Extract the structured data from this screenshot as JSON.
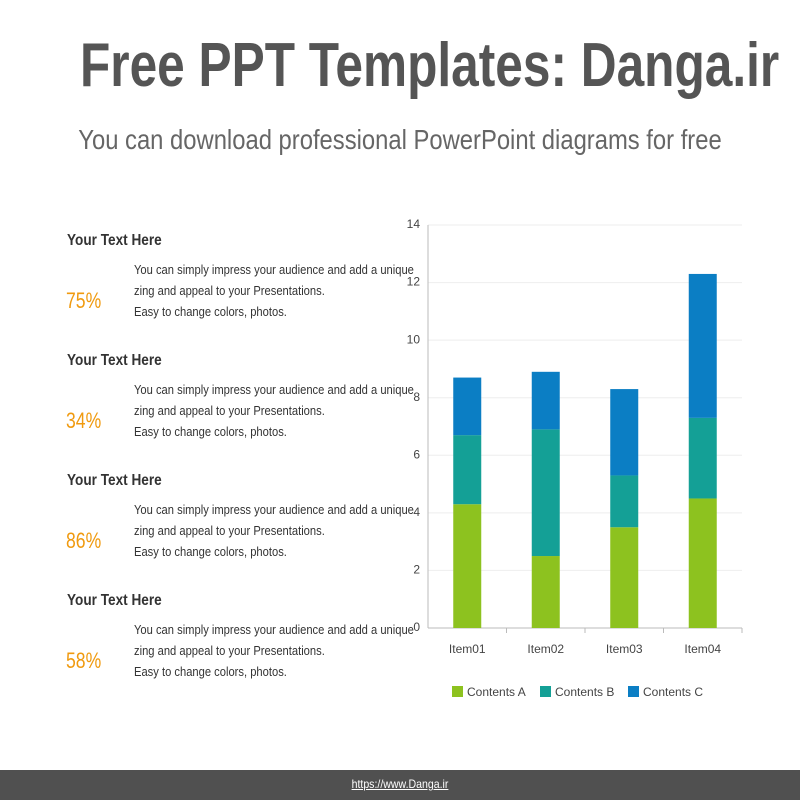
{
  "header": {
    "title": "Free PPT Templates: Danga.ir",
    "subtitle": "You can download professional PowerPoint diagrams for free"
  },
  "items": [
    {
      "heading": "Your Text Here",
      "value": "75",
      "unit": "%",
      "lines": [
        "You can simply impress your audience and add a unique",
        "zing and appeal to your Presentations.",
        "Easy to change colors, photos."
      ]
    },
    {
      "heading": "Your Text Here",
      "value": "34",
      "unit": "%",
      "lines": [
        "You can simply impress your audience and add a unique",
        "zing and appeal to your Presentations.",
        "Easy to change colors, photos."
      ]
    },
    {
      "heading": "Your Text Here",
      "value": "86",
      "unit": "%",
      "lines": [
        "You can simply impress your audience and add a unique",
        "zing and appeal to your Presentations.",
        "Easy to change colors, photos."
      ]
    },
    {
      "heading": "Your Text Here",
      "value": "58",
      "unit": "%",
      "lines": [
        "You can simply impress your audience and add a unique",
        "zing and appeal to your Presentations.",
        "Easy to change colors, photos."
      ]
    }
  ],
  "chart_data": {
    "type": "bar",
    "stacked": true,
    "categories": [
      "Item01",
      "Item02",
      "Item03",
      "Item04"
    ],
    "series": [
      {
        "name": "Contents A",
        "color": "#8dc21f",
        "values": [
          4.3,
          2.5,
          3.5,
          4.5
        ]
      },
      {
        "name": "Contents B",
        "color": "#14a096",
        "values": [
          2.4,
          4.4,
          1.8,
          2.8
        ]
      },
      {
        "name": "Contents C",
        "color": "#0b7ec4",
        "values": [
          2.0,
          2.0,
          3.0,
          5.0
        ]
      }
    ],
    "ylim": [
      0,
      14
    ],
    "yticks": [
      0,
      2,
      4,
      6,
      8,
      10,
      12,
      14
    ],
    "grid": true,
    "legend": "bottom"
  },
  "footer": {
    "link": "https://www.Danga.ir"
  }
}
